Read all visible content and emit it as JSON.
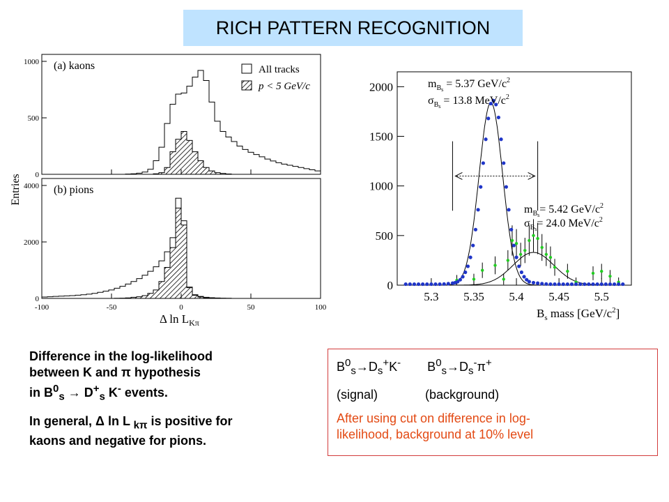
{
  "slide_title": "RICH PATTERN RECOGNITION",
  "chart_data": [
    {
      "type": "histogram",
      "panel_a_label": "(a)  kaons",
      "panel_b_label": "(b)  pions",
      "ylabel": "Entries",
      "xlabel": "Δ ln L",
      "xlabel_sub": "Kπ",
      "xlim": [
        -100,
        100
      ],
      "x_ticks": [
        "-100",
        "-50",
        "0",
        "50",
        "100"
      ],
      "panel_a_ylim": [
        0,
        1000
      ],
      "panel_a_y_ticks": [
        "0",
        "500",
        "1000"
      ],
      "panel_b_ylim": [
        0,
        4000
      ],
      "panel_b_y_ticks": [
        "0",
        "2000",
        "4000"
      ],
      "legend": {
        "all_tracks": "All tracks",
        "low_p": "p < 5 GeV/c"
      },
      "bin_centers": [
        -98,
        -94,
        -90,
        -86,
        -82,
        -78,
        -74,
        -70,
        -66,
        -62,
        -58,
        -54,
        -50,
        -46,
        -42,
        -38,
        -34,
        -30,
        -26,
        -22,
        -18,
        -14,
        -10,
        -6,
        -2,
        2,
        6,
        10,
        14,
        18,
        22,
        26,
        30,
        34,
        38,
        42,
        46,
        50,
        54,
        58,
        62,
        66,
        70,
        74,
        78,
        82,
        86,
        90,
        94,
        98
      ],
      "series": [
        {
          "name": "All tracks",
          "panel": "a",
          "values": [
            0,
            0,
            0,
            0,
            0,
            0,
            0,
            0,
            0,
            0,
            0,
            0,
            0,
            0,
            0,
            2,
            5,
            10,
            20,
            45,
            120,
            240,
            450,
            620,
            710,
            720,
            780,
            860,
            920,
            830,
            640,
            470,
            380,
            330,
            290,
            250,
            220,
            195,
            175,
            155,
            135,
            118,
            103,
            90,
            80,
            70,
            60,
            50,
            40,
            30
          ]
        },
        {
          "name": "p < 5 GeV/c",
          "panel": "a",
          "values": [
            0,
            0,
            0,
            0,
            0,
            0,
            0,
            0,
            0,
            0,
            0,
            0,
            0,
            0,
            0,
            0,
            0,
            0,
            0,
            0,
            5,
            15,
            60,
            200,
            310,
            380,
            300,
            200,
            120,
            60,
            30,
            15,
            8,
            3,
            0,
            0,
            0,
            0,
            0,
            0,
            0,
            0,
            0,
            0,
            0,
            0,
            0,
            0,
            0,
            0
          ]
        },
        {
          "name": "All tracks",
          "panel": "b",
          "values": [
            50,
            60,
            70,
            80,
            90,
            100,
            115,
            130,
            150,
            180,
            215,
            255,
            300,
            360,
            430,
            510,
            600,
            700,
            820,
            960,
            1120,
            1330,
            1650,
            2150,
            3550,
            2750,
            400,
            130,
            70,
            40,
            25,
            15,
            10,
            5,
            0,
            0,
            0,
            0,
            0,
            0,
            0,
            0,
            0,
            0,
            0,
            0,
            0,
            0,
            0,
            0
          ]
        },
        {
          "name": "p < 5 GeV/c",
          "panel": "b",
          "values": [
            0,
            0,
            0,
            0,
            0,
            0,
            0,
            0,
            0,
            0,
            0,
            0,
            0,
            5,
            10,
            20,
            40,
            60,
            100,
            180,
            300,
            600,
            1100,
            1800,
            3200,
            2600,
            380,
            110,
            50,
            20,
            10,
            5,
            0,
            0,
            0,
            0,
            0,
            0,
            0,
            0,
            0,
            0,
            0,
            0,
            0,
            0,
            0,
            0,
            0,
            0
          ]
        }
      ]
    },
    {
      "type": "scatter",
      "xlabel": "B",
      "xlabel_sub": "s",
      "xlabel_rest": " mass [GeV/c",
      "xlabel_end": "]",
      "xlim": [
        5.26,
        5.535
      ],
      "ylim": [
        0,
        2150
      ],
      "x_ticks": [
        "5.3",
        "5.35",
        "5.4",
        "5.45",
        "5.5"
      ],
      "y_ticks": [
        "0",
        "500",
        "1000",
        "1500",
        "2000"
      ],
      "signal_mass": "5.37 GeV/c",
      "signal_sigma": "13.8 MeV/c",
      "background_mass": "5.42 GeV/c",
      "background_sigma": "24.0 MeV/c",
      "window": [
        5.325,
        5.425
      ],
      "signal_fit": {
        "mean": 5.37,
        "sigma": 0.0138,
        "amplitude": 1840
      },
      "background_fit": {
        "mean": 5.42,
        "sigma": 0.024,
        "amplitude": 330
      },
      "signal_points": {
        "x": [
          5.27,
          5.275,
          5.28,
          5.285,
          5.29,
          5.295,
          5.3,
          5.305,
          5.31,
          5.315,
          5.32,
          5.325,
          5.328,
          5.331,
          5.334,
          5.337,
          5.34,
          5.343,
          5.346,
          5.349,
          5.352,
          5.355,
          5.358,
          5.361,
          5.364,
          5.367,
          5.37,
          5.373,
          5.376,
          5.379,
          5.382,
          5.385,
          5.388,
          5.391,
          5.394,
          5.397,
          5.4,
          5.403,
          5.406,
          5.409,
          5.412,
          5.415,
          5.42,
          5.425,
          5.43,
          5.435,
          5.44,
          5.445,
          5.45,
          5.455,
          5.46,
          5.465,
          5.47,
          5.475,
          5.48,
          5.485,
          5.49,
          5.495,
          5.5,
          5.505,
          5.51,
          5.515,
          5.52,
          5.525
        ],
        "y": [
          10,
          10,
          10,
          10,
          10,
          10,
          10,
          10,
          10,
          12,
          15,
          20,
          25,
          35,
          55,
          85,
          130,
          190,
          280,
          400,
          560,
          760,
          990,
          1230,
          1470,
          1680,
          1830,
          1860,
          1820,
          1690,
          1470,
          1230,
          990,
          760,
          560,
          400,
          280,
          190,
          130,
          85,
          55,
          35,
          25,
          20,
          15,
          12,
          10,
          10,
          10,
          10,
          10,
          10,
          10,
          10,
          10,
          10,
          10,
          10,
          10,
          10,
          10,
          10,
          10,
          10
        ]
      },
      "background_points": {
        "x": [
          5.33,
          5.35,
          5.36,
          5.375,
          5.385,
          5.39,
          5.395,
          5.4,
          5.405,
          5.41,
          5.415,
          5.42,
          5.425,
          5.43,
          5.435,
          5.44,
          5.445,
          5.46,
          5.47,
          5.49,
          5.5,
          5.51,
          5.52
        ],
        "y": [
          50,
          60,
          150,
          200,
          60,
          250,
          450,
          420,
          310,
          350,
          450,
          500,
          470,
          380,
          310,
          280,
          180,
          140,
          30,
          120,
          140,
          90,
          30
        ]
      }
    }
  ],
  "description": {
    "line1": "Difference in the log-likelihood",
    "line2_pre": "between K and ",
    "line2_pi": "π",
    "line2_post": " hypothesis",
    "line3_pre": "in B",
    "line3_sup0": "0",
    "line3_sub_s": "s",
    "line3_arrow": " → ",
    "line3_d": "D",
    "line3_sup_plus": "+",
    "line3_sub_s2": "s",
    "line3_k": " K",
    "line3_sup_minus": "-",
    "line3_post": " events.",
    "line4_pre": "In general,  ",
    "line4_delta": "Δ",
    "line4_mid": " ln L ",
    "line4_sub": "kπ",
    "line4_post": " is positive for",
    "line5": "kaons and negative for pions."
  },
  "side_box": {
    "signal_b": "B",
    "signal_sup0": "0",
    "signal_sub_s": "s",
    "signal_arrow": "→",
    "signal_d": "D",
    "signal_sub_s2": "s",
    "signal_sup_plus": "+",
    "signal_k": "K",
    "signal_sup_minus": "-",
    "bg_b": "B",
    "bg_sup0": "0",
    "bg_sub_s": "s",
    "bg_arrow": "→",
    "bg_d": "D",
    "bg_sub_s2": "s",
    "bg_sup_minus": "-",
    "bg_pi": "π",
    "bg_sup_plus": "+",
    "signal_label": "(signal)",
    "bg_label": "(background)",
    "note_line1": "After using cut on difference in log-",
    "note_line2": "likelihood, background at 10% level"
  },
  "colors": {
    "title_bg": "#bfe3ff",
    "marker_blue": "#1f35c8",
    "marker_green": "#22cc22",
    "note_red": "#e34a14",
    "box_border": "#d23b3b"
  }
}
